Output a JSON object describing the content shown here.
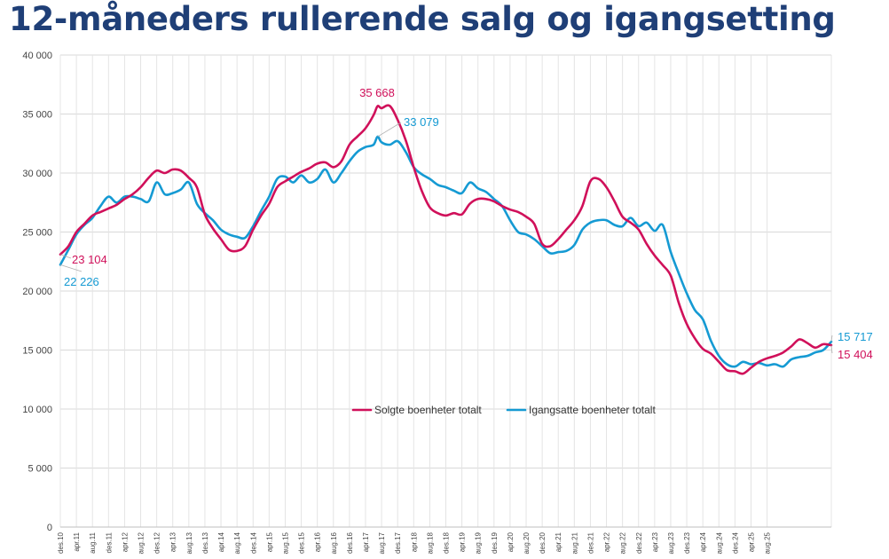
{
  "title": "12-måneders rullerende salg og igangsetting",
  "chart_data": {
    "type": "line",
    "title": "12-måneders rullerende salg og igangsetting",
    "xlabel": "",
    "ylabel": "",
    "ylim": [
      0,
      40000
    ],
    "y_ticks": [
      0,
      5000,
      10000,
      15000,
      20000,
      25000,
      30000,
      35000,
      40000
    ],
    "y_tick_labels": [
      "0",
      "5 000",
      "10 000",
      "15 000",
      "20 000",
      "25 000",
      "30 000",
      "35 000",
      "40 000"
    ],
    "grid": "both",
    "legend_position": "center",
    "x_start": "des.10",
    "x_end": "des.25",
    "x_tick_labels": [
      "des.10",
      "apr.11",
      "aug.11",
      "des.11",
      "apr.12",
      "aug.12",
      "des.12",
      "apr.13",
      "aug.13",
      "des.13",
      "apr.14",
      "aug.14",
      "des.14",
      "apr.15",
      "aug.15",
      "des.15",
      "apr.16",
      "aug.16",
      "des.16",
      "apr.17",
      "aug.17",
      "des.17",
      "apr.18",
      "aug.18",
      "des.18",
      "apr.19",
      "aug.19",
      "des.19",
      "apr.20",
      "aug.20",
      "des.20",
      "apr.21",
      "aug.21",
      "des.21",
      "apr.22",
      "aug.22",
      "des.22",
      "apr.23",
      "aug.23",
      "des.23",
      "apr.24",
      "aug.24",
      "des.24",
      "apr.25",
      "aug.25"
    ],
    "series": [
      {
        "name": "Solgte boenheter totalt",
        "color": "#d0105a",
        "points": [
          [
            0,
            23104
          ],
          [
            2,
            23800
          ],
          [
            4,
            25000
          ],
          [
            6,
            25700
          ],
          [
            8,
            26400
          ],
          [
            10,
            26700
          ],
          [
            12,
            27000
          ],
          [
            14,
            27300
          ],
          [
            16,
            27800
          ],
          [
            18,
            28200
          ],
          [
            20,
            28800
          ],
          [
            22,
            29600
          ],
          [
            24,
            30200
          ],
          [
            26,
            30000
          ],
          [
            28,
            30300
          ],
          [
            30,
            30200
          ],
          [
            32,
            29600
          ],
          [
            34,
            28800
          ],
          [
            36,
            26500
          ],
          [
            38,
            25300
          ],
          [
            40,
            24400
          ],
          [
            42,
            23500
          ],
          [
            44,
            23400
          ],
          [
            46,
            23800
          ],
          [
            48,
            25200
          ],
          [
            50,
            26400
          ],
          [
            52,
            27400
          ],
          [
            54,
            28800
          ],
          [
            56,
            29300
          ],
          [
            58,
            29700
          ],
          [
            60,
            30100
          ],
          [
            62,
            30400
          ],
          [
            64,
            30800
          ],
          [
            66,
            30900
          ],
          [
            68,
            30500
          ],
          [
            70,
            31000
          ],
          [
            72,
            32400
          ],
          [
            74,
            33100
          ],
          [
            76,
            33800
          ],
          [
            78,
            34900
          ],
          [
            79,
            35668
          ],
          [
            80,
            35500
          ],
          [
            82,
            35700
          ],
          [
            84,
            34500
          ],
          [
            86,
            32800
          ],
          [
            88,
            30500
          ],
          [
            90,
            28500
          ],
          [
            92,
            27100
          ],
          [
            94,
            26600
          ],
          [
            96,
            26400
          ],
          [
            98,
            26600
          ],
          [
            100,
            26500
          ],
          [
            102,
            27400
          ],
          [
            104,
            27800
          ],
          [
            106,
            27800
          ],
          [
            108,
            27600
          ],
          [
            110,
            27200
          ],
          [
            112,
            26900
          ],
          [
            114,
            26700
          ],
          [
            116,
            26300
          ],
          [
            118,
            25700
          ],
          [
            120,
            24000
          ],
          [
            122,
            23800
          ],
          [
            124,
            24400
          ],
          [
            126,
            25200
          ],
          [
            128,
            26000
          ],
          [
            130,
            27200
          ],
          [
            132,
            29300
          ],
          [
            134,
            29500
          ],
          [
            136,
            28800
          ],
          [
            138,
            27600
          ],
          [
            140,
            26300
          ],
          [
            142,
            25800
          ],
          [
            144,
            25200
          ],
          [
            146,
            24000
          ],
          [
            148,
            23000
          ],
          [
            150,
            22200
          ],
          [
            152,
            21300
          ],
          [
            154,
            19000
          ],
          [
            156,
            17200
          ],
          [
            158,
            16000
          ],
          [
            160,
            15100
          ],
          [
            162,
            14700
          ],
          [
            164,
            14000
          ],
          [
            166,
            13300
          ],
          [
            168,
            13200
          ],
          [
            170,
            13000
          ],
          [
            172,
            13500
          ],
          [
            174,
            14000
          ],
          [
            176,
            14300
          ],
          [
            178,
            14500
          ],
          [
            180,
            14800
          ],
          [
            182,
            15300
          ],
          [
            184,
            15900
          ],
          [
            186,
            15600
          ],
          [
            188,
            15200
          ],
          [
            190,
            15500
          ],
          [
            192,
            15404
          ]
        ]
      },
      {
        "name": "Igangsatte boenheter totalt",
        "color": "#159ad3",
        "points": [
          [
            0,
            22226
          ],
          [
            2,
            23500
          ],
          [
            4,
            24800
          ],
          [
            6,
            25600
          ],
          [
            8,
            26200
          ],
          [
            10,
            27200
          ],
          [
            12,
            28000
          ],
          [
            14,
            27500
          ],
          [
            16,
            28000
          ],
          [
            18,
            28000
          ],
          [
            20,
            27800
          ],
          [
            22,
            27600
          ],
          [
            24,
            29200
          ],
          [
            26,
            28200
          ],
          [
            28,
            28300
          ],
          [
            30,
            28600
          ],
          [
            32,
            29200
          ],
          [
            34,
            27400
          ],
          [
            36,
            26600
          ],
          [
            38,
            26000
          ],
          [
            40,
            25200
          ],
          [
            42,
            24800
          ],
          [
            44,
            24600
          ],
          [
            46,
            24500
          ],
          [
            48,
            25500
          ],
          [
            50,
            26800
          ],
          [
            52,
            28000
          ],
          [
            54,
            29500
          ],
          [
            56,
            29700
          ],
          [
            58,
            29200
          ],
          [
            60,
            29800
          ],
          [
            62,
            29200
          ],
          [
            64,
            29500
          ],
          [
            66,
            30300
          ],
          [
            68,
            29200
          ],
          [
            70,
            30000
          ],
          [
            72,
            31000
          ],
          [
            74,
            31800
          ],
          [
            76,
            32200
          ],
          [
            78,
            32400
          ],
          [
            79,
            33079
          ],
          [
            80,
            32600
          ],
          [
            82,
            32400
          ],
          [
            84,
            32700
          ],
          [
            86,
            31800
          ],
          [
            88,
            30500
          ],
          [
            90,
            29900
          ],
          [
            92,
            29500
          ],
          [
            94,
            29000
          ],
          [
            96,
            28800
          ],
          [
            98,
            28500
          ],
          [
            100,
            28300
          ],
          [
            102,
            29200
          ],
          [
            104,
            28700
          ],
          [
            106,
            28400
          ],
          [
            108,
            27800
          ],
          [
            110,
            27200
          ],
          [
            112,
            26000
          ],
          [
            114,
            25000
          ],
          [
            116,
            24800
          ],
          [
            118,
            24400
          ],
          [
            120,
            23800
          ],
          [
            122,
            23200
          ],
          [
            124,
            23300
          ],
          [
            126,
            23400
          ],
          [
            128,
            23900
          ],
          [
            130,
            25200
          ],
          [
            132,
            25800
          ],
          [
            134,
            26000
          ],
          [
            136,
            26000
          ],
          [
            138,
            25600
          ],
          [
            140,
            25500
          ],
          [
            142,
            26200
          ],
          [
            144,
            25500
          ],
          [
            146,
            25800
          ],
          [
            148,
            25100
          ],
          [
            150,
            25600
          ],
          [
            152,
            23300
          ],
          [
            154,
            21500
          ],
          [
            156,
            19800
          ],
          [
            158,
            18400
          ],
          [
            160,
            17600
          ],
          [
            162,
            15800
          ],
          [
            164,
            14500
          ],
          [
            166,
            13800
          ],
          [
            168,
            13600
          ],
          [
            170,
            14000
          ],
          [
            172,
            13800
          ],
          [
            174,
            13900
          ],
          [
            176,
            13700
          ],
          [
            178,
            13800
          ],
          [
            180,
            13600
          ],
          [
            182,
            14200
          ],
          [
            184,
            14400
          ],
          [
            186,
            14500
          ],
          [
            188,
            14800
          ],
          [
            190,
            15000
          ],
          [
            192,
            15717
          ]
        ]
      }
    ],
    "annotations": [
      {
        "text": "23 104",
        "series": 0,
        "value": 23104,
        "where": "start"
      },
      {
        "text": "22 226",
        "series": 1,
        "value": 22226,
        "where": "start"
      },
      {
        "text": "35 668",
        "series": 0,
        "value": 35668,
        "where": "peak"
      },
      {
        "text": "33 079",
        "series": 1,
        "value": 33079,
        "where": "peak"
      },
      {
        "text": "15 717",
        "series": 1,
        "value": 15717,
        "where": "end"
      },
      {
        "text": "15 404",
        "series": 0,
        "value": 15404,
        "where": "end"
      }
    ]
  }
}
